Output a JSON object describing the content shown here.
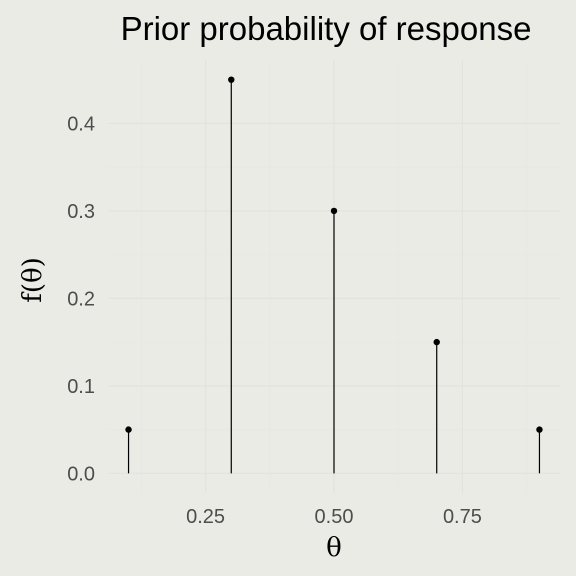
{
  "chart_data": {
    "type": "scatter",
    "title": "Prior probability of response",
    "xlabel": "θ",
    "ylabel": "f(θ)",
    "x": [
      0.1,
      0.3,
      0.5,
      0.7,
      0.9
    ],
    "y": [
      0.05,
      0.45,
      0.3,
      0.15,
      0.05
    ],
    "xlim": [
      0.06,
      0.94
    ],
    "ylim": [
      -0.0225,
      0.4725
    ],
    "x_ticks": [
      0.25,
      0.5,
      0.75
    ],
    "x_tick_labels": [
      "0.25",
      "0.50",
      "0.75"
    ],
    "y_ticks": [
      0.0,
      0.1,
      0.2,
      0.3,
      0.4
    ],
    "y_tick_labels": [
      "0.0",
      "0.1",
      "0.2",
      "0.3",
      "0.4"
    ],
    "grid": true,
    "legend": "none",
    "style": "stems with points",
    "colors": {
      "background": "#ebebe5",
      "marks": "#000000",
      "tick_text": "#4d4d4d",
      "grid": "#e3e3dd"
    }
  }
}
